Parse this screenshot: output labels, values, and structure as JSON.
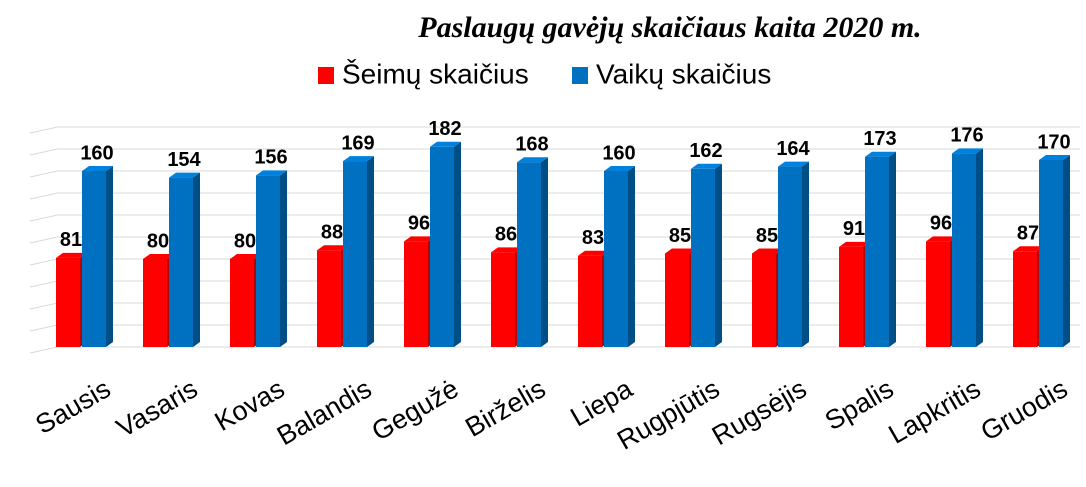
{
  "chart_data": {
    "type": "bar3d",
    "title": "Paslaugų gavėjų skaičiaus kaita 2020 m.",
    "categories": [
      "Sausis",
      "Vasaris",
      "Kovas",
      "Balandis",
      "Gegužė",
      "Birželis",
      "Liepa",
      "Rugpjūtis",
      "Rugsėjis",
      "Spalis",
      "Lapkritis",
      "Gruodis"
    ],
    "series": [
      {
        "name": "Šeimų skaičius",
        "color": "#ff0000",
        "values": [
          81,
          80,
          80,
          88,
          96,
          86,
          83,
          85,
          85,
          91,
          96,
          87
        ]
      },
      {
        "name": "Vaikų skaičius",
        "color": "#0070c0",
        "values": [
          160,
          154,
          156,
          169,
          182,
          168,
          160,
          162,
          164,
          173,
          176,
          170
        ]
      }
    ],
    "ylim": [
      0,
      200
    ],
    "yticks": [
      0,
      20,
      40,
      60,
      80,
      100,
      120,
      140,
      160,
      180,
      200
    ],
    "grid": true
  }
}
